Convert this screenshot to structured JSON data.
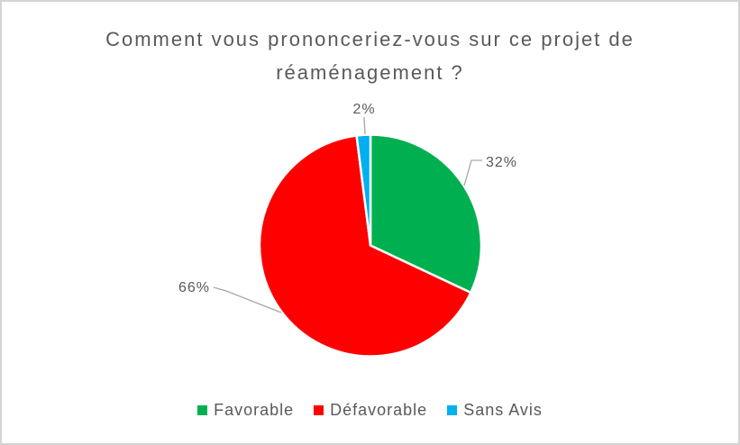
{
  "chart_data": {
    "type": "pie",
    "title": "Comment vous prononceriez-vous sur ce projet de réaménagement ?",
    "title_lines": [
      "Comment vous prononceriez-vous sur ce projet de",
      "réaménagement ?"
    ],
    "unit": "%",
    "slices": [
      {
        "label": "Favorable",
        "value": 32,
        "display": "32%",
        "color": "#00B050"
      },
      {
        "label": "Défavorable",
        "value": 66,
        "display": "66%",
        "color": "#FF0000"
      },
      {
        "label": "Sans Avis",
        "value": 2,
        "display": "2%",
        "color": "#00B0F0"
      }
    ],
    "start_angle_deg": 0,
    "direction": "clockwise",
    "legend_position": "bottom",
    "data_labels": "outside-with-leader-lines",
    "colors": {
      "text": "#595959",
      "leader_lines": "#A6A6A6",
      "frame_border": "#D4D4D4",
      "slice_separator": "#FFFFFF",
      "background": "#FFFFFF"
    }
  }
}
